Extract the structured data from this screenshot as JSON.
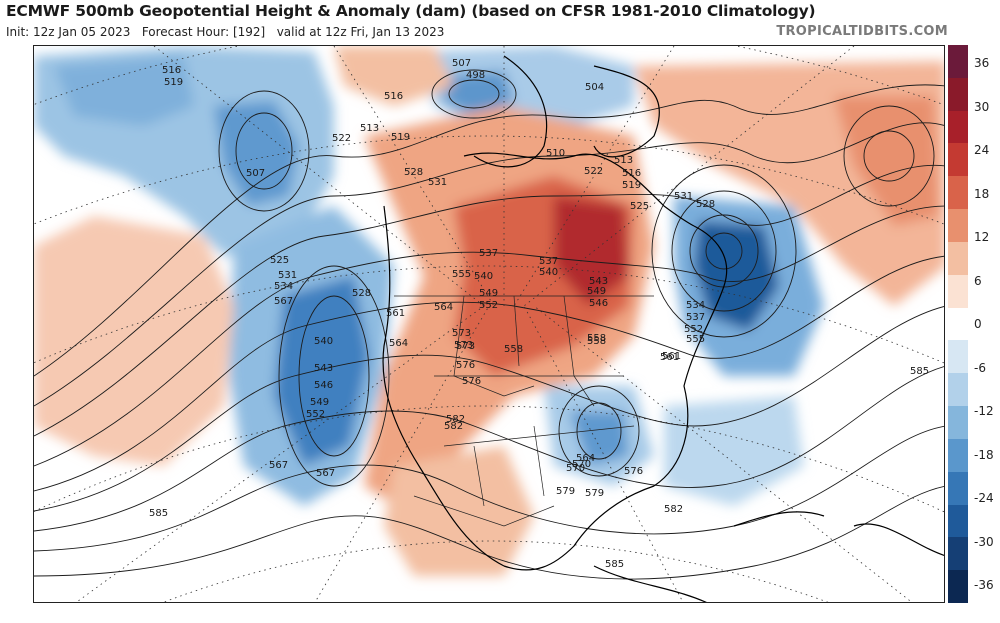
{
  "header": {
    "title": "ECMWF 500mb Geopotential Height & Anomaly (dam) (based on CFSR 1981-2010 Climatology)",
    "init": "Init: 12z Jan 05 2023",
    "forecast_hour": "Forecast Hour: [192]",
    "valid": "valid at 12z Fri, Jan 13 2023",
    "brand": "TROPICALTIDBITS.COM"
  },
  "colorbar": {
    "units": "dam anomaly",
    "labels": [
      "36",
      "30",
      "24",
      "18",
      "12",
      "6",
      "0",
      "-6",
      "-12",
      "-18",
      "-24",
      "-30",
      "-36"
    ],
    "colors": [
      "#6b1a3a",
      "#8a1a2a",
      "#a8202a",
      "#c43a32",
      "#d9634a",
      "#e8906e",
      "#f3bfa2",
      "#fbe2d3",
      "#ffffff",
      "#d7e7f3",
      "#b2d1ea",
      "#85b6dc",
      "#5a97cc",
      "#3677b6",
      "#1f5a9a",
      "#153f75",
      "#0c2852"
    ]
  },
  "contours": {
    "labels": [
      "516",
      "519",
      "507",
      "498",
      "504",
      "510",
      "513",
      "516",
      "519",
      "522",
      "525",
      "528",
      "531",
      "534",
      "537",
      "540",
      "543",
      "546",
      "549",
      "552",
      "555",
      "558",
      "561",
      "564",
      "567",
      "570",
      "573",
      "576",
      "579",
      "582",
      "585",
      "507",
      "513",
      "516",
      "519",
      "522",
      "528",
      "531",
      "525",
      "531",
      "534",
      "528",
      "537",
      "540",
      "543",
      "546",
      "549",
      "552",
      "555",
      "558",
      "561",
      "564",
      "567",
      "570",
      "573",
      "576",
      "579",
      "582",
      "585",
      "537",
      "540",
      "549",
      "552",
      "558",
      "561",
      "564",
      "567",
      "573",
      "576",
      "582",
      "585"
    ]
  }
}
